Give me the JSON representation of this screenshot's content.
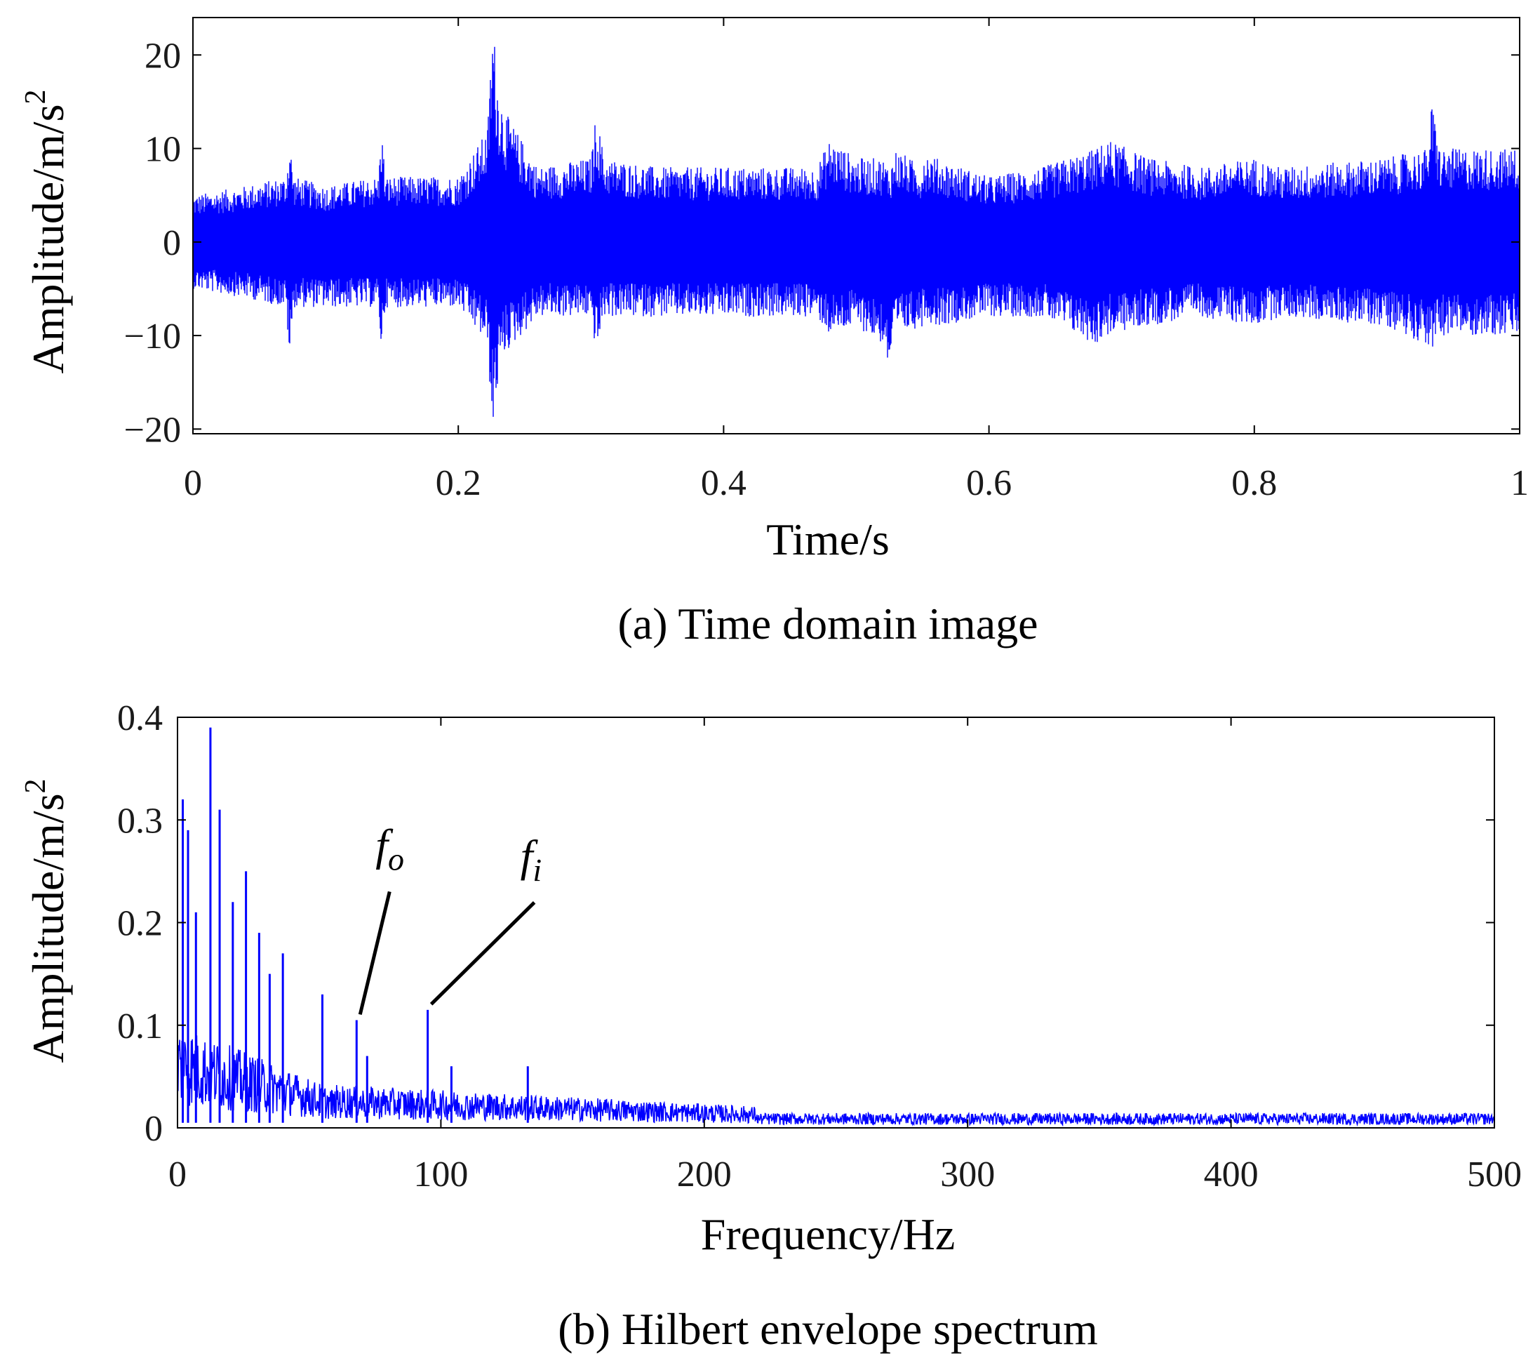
{
  "chart_data": [
    {
      "type": "line",
      "subplot": "a",
      "caption": "(a) Time domain image",
      "xlabel": "Time/s",
      "ylabel_text": "Amplitude/m/s",
      "ylabel_sup": "2",
      "xlim": [
        0,
        1
      ],
      "ylim": [
        -20.5,
        24
      ],
      "xticks": [
        0,
        0.2,
        0.4,
        0.6,
        0.8,
        1
      ],
      "xtick_labels": [
        "0",
        "0.2",
        "0.4",
        "0.6",
        "0.8",
        "1"
      ],
      "yticks": [
        -20,
        -10,
        0,
        10,
        20
      ],
      "ytick_labels": [
        "−20",
        "−10",
        "0",
        "10",
        "20"
      ],
      "grid": false,
      "series_color": "#0000ff",
      "envelope_x": [
        0,
        0.04,
        0.07,
        0.073,
        0.076,
        0.1,
        0.14,
        0.142,
        0.145,
        0.2,
        0.222,
        0.226,
        0.23,
        0.235,
        0.26,
        0.3,
        0.304,
        0.31,
        0.35,
        0.47,
        0.48,
        0.5,
        0.52,
        0.525,
        0.53,
        0.55,
        0.55,
        0.56,
        0.6,
        0.64,
        0.68,
        0.69,
        0.72,
        0.76,
        0.8,
        0.8,
        0.82,
        0.9,
        0.93,
        0.934,
        0.94,
        0.97,
        1
      ],
      "envelope_upper": [
        5,
        6,
        7,
        11,
        7,
        6,
        7,
        13,
        7,
        7,
        12,
        24,
        17,
        14,
        8,
        9,
        14,
        9,
        8,
        8,
        11,
        9,
        9,
        8,
        10,
        8,
        10,
        9,
        7,
        8,
        10,
        11,
        9,
        8,
        9,
        9,
        8,
        9,
        10,
        15,
        10,
        10,
        10
      ],
      "envelope_lower": [
        -5,
        -6,
        -7,
        -13,
        -7,
        -7,
        -7,
        -12,
        -7,
        -7,
        -11,
        -21,
        -15,
        -12,
        -8,
        -8,
        -12,
        -8,
        -8,
        -8,
        -10,
        -9,
        -11,
        -14,
        -10,
        -9,
        -8,
        -9,
        -8,
        -8,
        -11,
        -10,
        -9,
        -8,
        -9,
        -9,
        -8,
        -9,
        -11,
        -12,
        -10,
        -10,
        -10
      ]
    },
    {
      "type": "line",
      "subplot": "b",
      "caption": "(b) Hilbert envelope spectrum",
      "xlabel": "Frequency/Hz",
      "ylabel_text": "Amplitude/m/s",
      "ylabel_sup": "2",
      "xlim": [
        0,
        500
      ],
      "ylim": [
        0,
        0.4
      ],
      "xticks": [
        0,
        100,
        200,
        300,
        400,
        500
      ],
      "xtick_labels": [
        "0",
        "100",
        "200",
        "300",
        "400",
        "500"
      ],
      "yticks": [
        0,
        0.1,
        0.2,
        0.3,
        0.4
      ],
      "ytick_labels": [
        "0",
        "0.1",
        "0.2",
        "0.3",
        "0.4"
      ],
      "grid": false,
      "series_color": "#0000ff",
      "peaks_x": [
        2,
        4,
        7,
        12.5,
        16,
        21,
        26,
        31,
        35,
        40,
        55,
        68,
        72,
        95,
        104,
        133
      ],
      "peaks_y": [
        0.32,
        0.29,
        0.21,
        0.39,
        0.31,
        0.22,
        0.25,
        0.19,
        0.15,
        0.17,
        0.13,
        0.105,
        0.07,
        0.115,
        0.06,
        0.06
      ],
      "annotations": [
        {
          "label": "f",
          "sub": "o",
          "x": 68,
          "y": 0.105
        },
        {
          "label": "f",
          "sub": "i",
          "x": 95,
          "y": 0.115
        }
      ]
    }
  ]
}
